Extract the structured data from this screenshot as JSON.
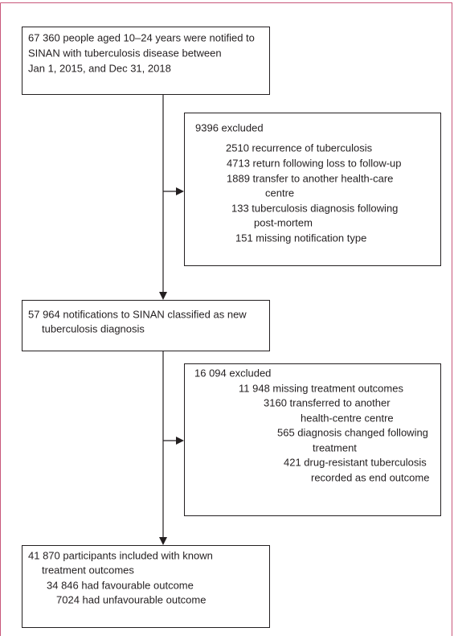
{
  "flowchart": {
    "boxes": [
      {
        "lines": [
          "67 360 people aged 10–24 years were notified to",
          "SINAN with tuberculosis disease between",
          "Jan 1, 2015, and Dec 31, 2018"
        ]
      },
      {
        "lines": [
          "9396 excluded",
          "2510 recurrence of tuberculosis",
          "4713 return following loss to follow-up",
          "1889 transfer to another health-care",
          "centre",
          "133 tuberculosis diagnosis following",
          "post-mortem",
          "151 missing notification type"
        ]
      },
      {
        "lines": [
          "57 964 notifications to SINAN classified as new",
          "tuberculosis diagnosis"
        ]
      },
      {
        "lines": [
          "16 094 excluded",
          "11 948 missing treatment outcomes",
          "3160 transferred to another",
          "health-centre centre",
          "565 diagnosis changed following",
          "treatment",
          "421 drug-resistant tuberculosis",
          "recorded as end outcome"
        ]
      },
      {
        "lines": [
          "41 870 participants included with known",
          "treatment outcomes",
          "34 846 had favourable outcome",
          "7024 had unfavourable outcome"
        ]
      }
    ]
  }
}
